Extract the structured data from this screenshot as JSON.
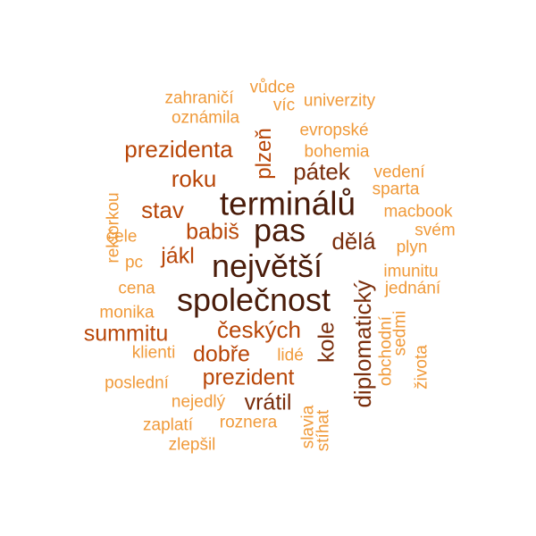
{
  "palette": {
    "darkest": "#4a1c0a",
    "dark": "#7a2e0c",
    "medium": "#b84608",
    "orange": "#db6d18",
    "light": "#f09a3a"
  },
  "words": [
    {
      "text": "terminálů",
      "weight": 5,
      "tone": "darkest",
      "vertical": false
    },
    {
      "text": "pas",
      "weight": 5,
      "tone": "darkest",
      "vertical": false
    },
    {
      "text": "největší",
      "weight": 5,
      "tone": "darkest",
      "vertical": false
    },
    {
      "text": "společnost",
      "weight": 5,
      "tone": "darkest",
      "vertical": false
    },
    {
      "text": "pátek",
      "weight": 4,
      "tone": "dark",
      "vertical": false
    },
    {
      "text": "dělá",
      "weight": 4,
      "tone": "dark",
      "vertical": false
    },
    {
      "text": "diplomatický",
      "weight": 4,
      "tone": "dark",
      "vertical": true
    },
    {
      "text": "kole",
      "weight": 4,
      "tone": "dark",
      "vertical": true
    },
    {
      "text": "vrátil",
      "weight": 4,
      "tone": "dark",
      "vertical": false
    },
    {
      "text": "prezidenta",
      "weight": 3,
      "tone": "medium",
      "vertical": false
    },
    {
      "text": "roku",
      "weight": 3,
      "tone": "medium",
      "vertical": false
    },
    {
      "text": "stav",
      "weight": 3,
      "tone": "medium",
      "vertical": false
    },
    {
      "text": "babiš",
      "weight": 3,
      "tone": "medium",
      "vertical": false
    },
    {
      "text": "jákl",
      "weight": 3,
      "tone": "medium",
      "vertical": false
    },
    {
      "text": "plzeň",
      "weight": 3,
      "tone": "medium",
      "vertical": true
    },
    {
      "text": "českých",
      "weight": 3,
      "tone": "medium",
      "vertical": false
    },
    {
      "text": "summitu",
      "weight": 3,
      "tone": "medium",
      "vertical": false
    },
    {
      "text": "dobře",
      "weight": 3,
      "tone": "medium",
      "vertical": false
    },
    {
      "text": "prezident",
      "weight": 3,
      "tone": "medium",
      "vertical": false
    },
    {
      "text": "zahraničí",
      "weight": 1,
      "tone": "light",
      "vertical": false
    },
    {
      "text": "vůdce",
      "weight": 1,
      "tone": "light",
      "vertical": false
    },
    {
      "text": "víc",
      "weight": 1,
      "tone": "light",
      "vertical": false
    },
    {
      "text": "univerzity",
      "weight": 1,
      "tone": "light",
      "vertical": false
    },
    {
      "text": "oznámila",
      "weight": 1,
      "tone": "light",
      "vertical": false
    },
    {
      "text": "evropské",
      "weight": 1,
      "tone": "light",
      "vertical": false
    },
    {
      "text": "bohemia",
      "weight": 1,
      "tone": "light",
      "vertical": false
    },
    {
      "text": "vedení",
      "weight": 1,
      "tone": "light",
      "vertical": false
    },
    {
      "text": "sparta",
      "weight": 1,
      "tone": "light",
      "vertical": false
    },
    {
      "text": "macbook",
      "weight": 1,
      "tone": "light",
      "vertical": false
    },
    {
      "text": "svém",
      "weight": 1,
      "tone": "light",
      "vertical": false
    },
    {
      "text": "plyn",
      "weight": 1,
      "tone": "light",
      "vertical": false
    },
    {
      "text": "imunitu",
      "weight": 1,
      "tone": "light",
      "vertical": false
    },
    {
      "text": "jednání",
      "weight": 1,
      "tone": "light",
      "vertical": false
    },
    {
      "text": "rektorkou",
      "weight": 1,
      "tone": "light",
      "vertical": true
    },
    {
      "text": "čele",
      "weight": 1,
      "tone": "light",
      "vertical": false
    },
    {
      "text": "pc",
      "weight": 1,
      "tone": "light",
      "vertical": false
    },
    {
      "text": "cena",
      "weight": 1,
      "tone": "light",
      "vertical": false
    },
    {
      "text": "monika",
      "weight": 1,
      "tone": "light",
      "vertical": false
    },
    {
      "text": "klienti",
      "weight": 1,
      "tone": "light",
      "vertical": false
    },
    {
      "text": "lidé",
      "weight": 1,
      "tone": "light",
      "vertical": false
    },
    {
      "text": "poslední",
      "weight": 1,
      "tone": "light",
      "vertical": false
    },
    {
      "text": "nejedlý",
      "weight": 1,
      "tone": "light",
      "vertical": false
    },
    {
      "text": "zaplatí",
      "weight": 1,
      "tone": "light",
      "vertical": false
    },
    {
      "text": "roznera",
      "weight": 1,
      "tone": "light",
      "vertical": false
    },
    {
      "text": "zlepšil",
      "weight": 1,
      "tone": "light",
      "vertical": false
    },
    {
      "text": "slavia",
      "weight": 1,
      "tone": "light",
      "vertical": true
    },
    {
      "text": "stíhat",
      "weight": 1,
      "tone": "light",
      "vertical": true
    },
    {
      "text": "obchodní",
      "weight": 1,
      "tone": "light",
      "vertical": true
    },
    {
      "text": "sedmi",
      "weight": 1,
      "tone": "light",
      "vertical": true
    },
    {
      "text": "života",
      "weight": 1,
      "tone": "light",
      "vertical": true
    }
  ]
}
